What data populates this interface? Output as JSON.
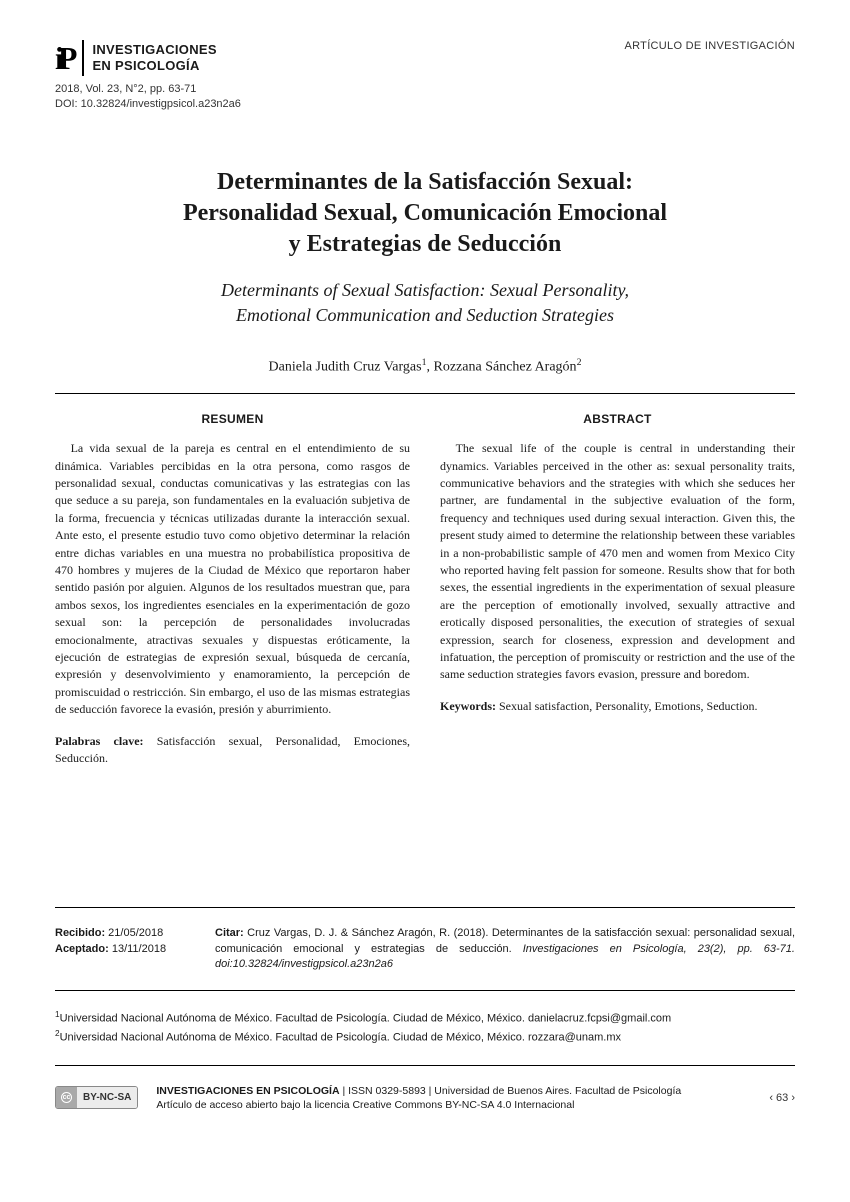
{
  "header": {
    "journal_name_line1": "INVESTIGACIONES",
    "journal_name_line2": "EN PSICOLOGÍA",
    "article_type": "ARTÍCULO DE INVESTIGACIÓN",
    "volume_line": "2018, Vol. 23, N°2, pp. 63-71",
    "doi_line": "DOI: 10.32824/investigpsicol.a23n2a6"
  },
  "title": {
    "es_line1": "Determinantes de la Satisfacción Sexual:",
    "es_line2": "Personalidad Sexual, Comunicación Emocional",
    "es_line3": "y Estrategias de Seducción",
    "en_line1": "Determinants of Sexual Satisfaction: Sexual Personality,",
    "en_line2": "Emotional Communication and Seduction Strategies"
  },
  "authors": {
    "a1": "Daniela Judith Cruz Vargas",
    "sup1": "1",
    "sep": ", ",
    "a2": "Rozzana Sánchez Aragón",
    "sup2": "2"
  },
  "abstracts": {
    "es_heading": "RESUMEN",
    "es_body": "La vida sexual de la pareja es central en el entendimiento de su dinámica. Variables percibidas en la otra persona, como rasgos de personalidad sexual, conductas comunicativas y las estrategias con las que seduce a su pareja, son fundamentales en la evaluación subjetiva de la forma, frecuencia y técnicas utilizadas durante la interacción sexual. Ante esto, el presente estudio tuvo como objetivo determinar la relación entre dichas variables en una muestra no probabilística propositiva de 470 hombres y mujeres de la Ciudad de México que reportaron haber sentido pasión por alguien. Algunos de los resultados muestran que, para ambos sexos, los ingredientes esenciales en la experimentación de gozo sexual son: la percepción de personalidades involucradas emocionalmente, atractivas sexuales y dispuestas eróticamente, la ejecución de estrategias de expresión sexual, búsqueda de cercanía, expresión y desenvolvimiento y enamoramiento, la percepción de promiscuidad o restricción. Sin embargo, el uso de las mismas estrategias de seducción favorece la evasión, presión y aburrimiento.",
    "es_kw_label": "Palabras clave:",
    "es_kw": " Satisfacción sexual, Personalidad, Emociones, Seducción.",
    "en_heading": "ABSTRACT",
    "en_body": "The sexual life of the couple is central in understanding their dynamics. Variables perceived in the other as: sexual personality traits, communicative behaviors and the strategies with which she seduces her partner, are fundamental in the subjective evaluation of the form, frequency and techniques used during sexual interaction. Given this, the present study aimed to determine the relationship between these variables in a non-probabilistic sample of 470 men and women from Mexico City who reported having felt passion for someone. Results show that for both sexes, the essential ingredients in the experimentation of sexual pleasure are the perception of emotionally involved, sexually attractive and erotically disposed personalities, the execution of strategies of sexual expression, search for closeness, expression and development and infatuation, the perception of promiscuity or restriction and the use of the same seduction strategies favors evasion, pressure and boredom.",
    "en_kw_label": "Keywords:",
    "en_kw": " Sexual satisfaction, Personality, Emotions, Seduction."
  },
  "footer": {
    "recibido_label": "Recibido:",
    "recibido_date": " 21/05/2018",
    "aceptado_label": "Aceptado:",
    "aceptado_date": " 13/11/2018",
    "citar_label": "Citar: ",
    "citar_text_pre": "Cruz Vargas, D. J. & Sánchez Aragón, R. (2018). Determinantes de la satisfacción sexual: personalidad sexual, comunicación emocional y estrategias de seducción. ",
    "citar_journal": "Investigaciones en Psicología",
    "citar_text_post": ", 23(2), pp. 63-71. doi:10.32824/investigpsicol.a23n2a6",
    "affil1_sup": "1",
    "affil1": "Universidad Nacional Autónoma de México. Facultad de Psicología. Ciudad de México, México. danielacruz.fcpsi@gmail.com",
    "affil2_sup": "2",
    "affil2": "Universidad Nacional Autónoma de México. Facultad de Psicología. Ciudad de México, México. rozzara@unam.mx",
    "cc_text": "BY-NC-SA",
    "final_line1_pre": "INVESTIGACIONES EN PSICOLOGÍA",
    "final_line1_post": " | ISSN 0329-5893 | Universidad de Buenos Aires. Facultad de Psicología",
    "final_line2": "Artículo de acceso abierto bajo la licencia Creative Commons BY-NC-SA 4.0 Internacional",
    "page_num": "‹ 63 ›"
  }
}
